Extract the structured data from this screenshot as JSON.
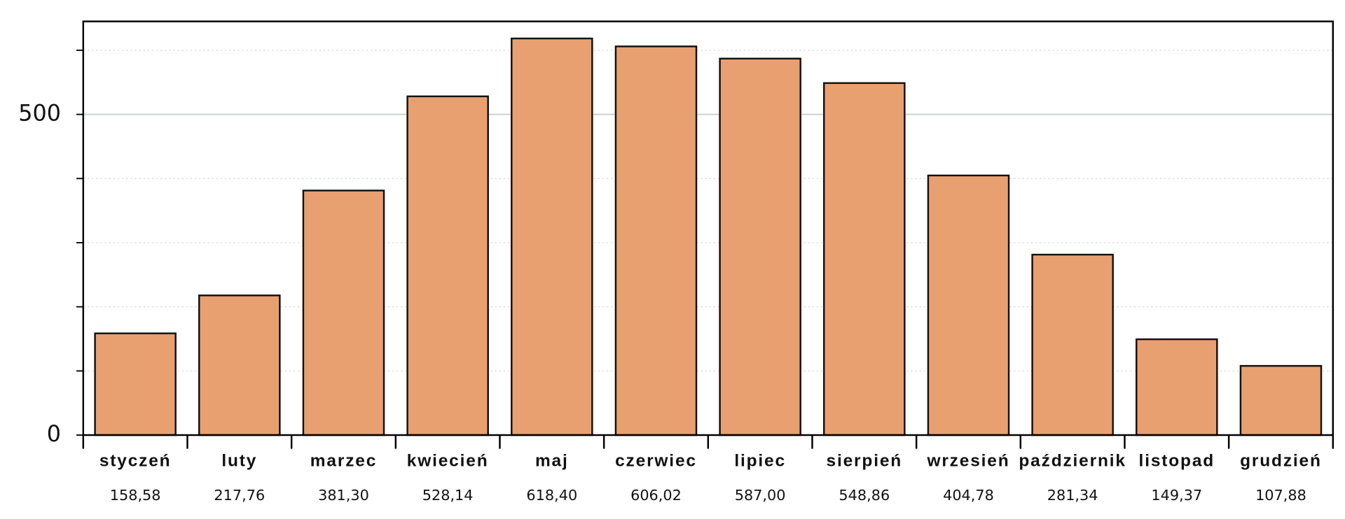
{
  "chart_data": {
    "type": "bar",
    "categories": [
      "styczeń",
      "luty",
      "marzec",
      "kwiecień",
      "maj",
      "czerwiec",
      "lipiec",
      "sierpień",
      "wrzesień",
      "październik",
      "listopad",
      "grudzień"
    ],
    "values": [
      158.58,
      217.76,
      381.3,
      528.14,
      618.4,
      606.02,
      587.0,
      548.86,
      404.78,
      281.34,
      149.37,
      107.88
    ],
    "value_labels": [
      "158,58",
      "217,76",
      "381,30",
      "528,14",
      "618,40",
      "606,02",
      "587,00",
      "548,86",
      "404,78",
      "281,34",
      "149,37",
      "107,88"
    ],
    "color": "#e9a070",
    "ylim": [
      0,
      645
    ],
    "yticks": [
      0,
      500
    ],
    "minor_yticks": [
      100,
      200,
      300,
      400,
      600
    ],
    "grid": true
  }
}
